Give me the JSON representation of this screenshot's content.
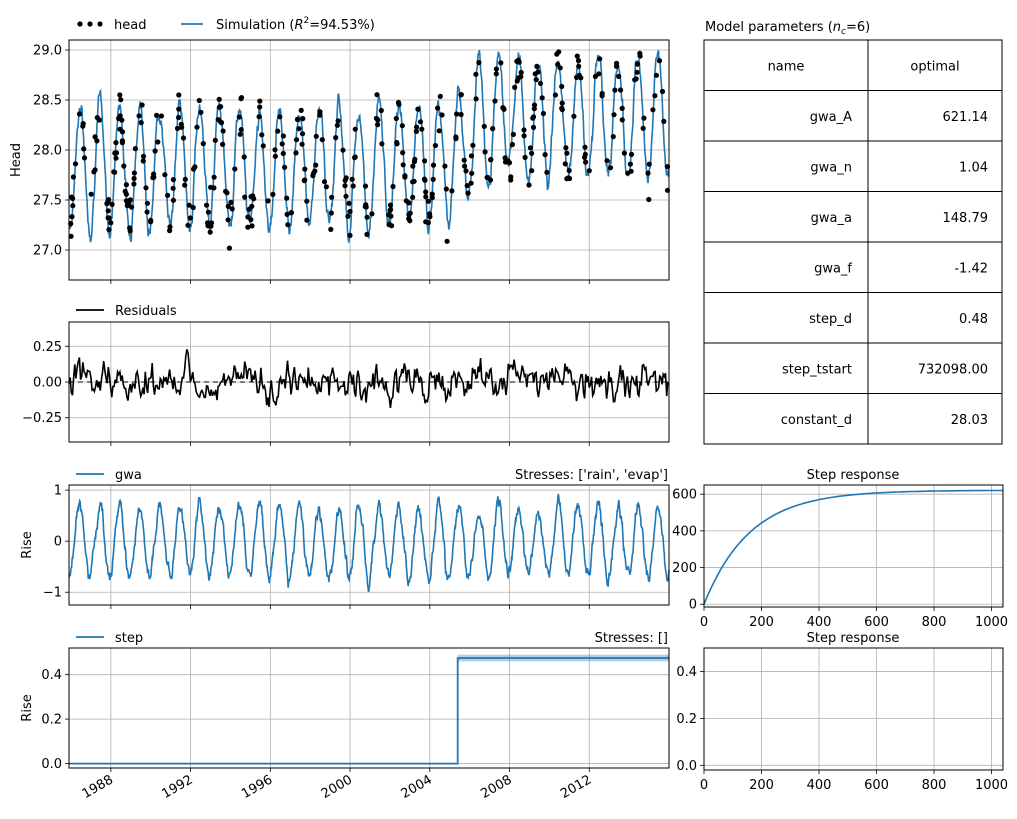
{
  "colors": {
    "blue": "#1f77b4",
    "black": "#000000",
    "grid": "#b0b0b0"
  },
  "chart_data": [
    {
      "id": "head",
      "type": "line",
      "ylabel": "Head",
      "ylim": [
        26.7,
        29.1
      ],
      "xlim": [
        1985.9,
        2016.0
      ],
      "yticks": [
        27.0,
        27.5,
        28.0,
        28.5,
        29.0
      ],
      "ytick_labels": [
        "27.0",
        "27.5",
        "28.0",
        "28.5",
        "29.0"
      ],
      "grid": true,
      "legend_position": "top-left above axes",
      "legend": [
        {
          "name": "head",
          "style": "dots",
          "color": "#000000"
        },
        {
          "name_prefix": "Simulation (",
          "name_r2": "R",
          "name_sup": "2",
          "name_suffix": "=94.53%)",
          "style": "line",
          "color": "#1f77b4"
        }
      ],
      "series": [
        {
          "name": "head",
          "style": "dots",
          "color": "#000000",
          "mean": 28.0,
          "amplitude": 0.55,
          "period": 1.0,
          "phase": 0.2,
          "noise": 0.25,
          "trend_after_2005": 0.45,
          "count": 420
        },
        {
          "name": "Simulation",
          "style": "line",
          "color": "#1f77b4",
          "mean": 28.0,
          "amplitude": 0.6,
          "period": 1.0,
          "phase": 0.2,
          "noise": 0.08,
          "trend_after_2005": 0.47,
          "count": 1200
        }
      ]
    },
    {
      "id": "residuals",
      "type": "line",
      "ylim": [
        -0.42,
        0.42
      ],
      "xlim": [
        1985.9,
        2016.0
      ],
      "yticks": [
        -0.25,
        0.0,
        0.25
      ],
      "ytick_labels": [
        "−0.25",
        "0.00",
        "0.25"
      ],
      "grid": true,
      "legend_position": "top-left above axes",
      "legend": [
        {
          "name": "Residuals",
          "style": "line",
          "color": "#000000"
        }
      ],
      "series": [
        {
          "name": "Residuals",
          "color": "#000000",
          "noise": 0.12,
          "count": 520
        }
      ],
      "zero_line": true
    },
    {
      "id": "gwa",
      "type": "line",
      "ylabel": "Rise",
      "ylim": [
        -1.25,
        1.1
      ],
      "xlim": [
        1985.9,
        2016.0
      ],
      "yticks": [
        -1,
        0,
        1
      ],
      "ytick_labels": [
        "−1",
        "0",
        "1"
      ],
      "grid": true,
      "title_right": "Stresses: ['rain', 'evap']",
      "legend_position": "top-left above axes",
      "legend": [
        {
          "name": "gwa",
          "style": "line",
          "color": "#1f77b4"
        }
      ],
      "series": [
        {
          "name": "gwa",
          "color": "#1f77b4",
          "mean": 0.0,
          "amplitude": 0.7,
          "period": 1.0,
          "phase": 0.2,
          "noise": 0.12,
          "count": 1400
        }
      ]
    },
    {
      "id": "step",
      "type": "line",
      "ylabel": "Rise",
      "ylim": [
        -0.02,
        0.52
      ],
      "xlim": [
        1985.9,
        2016.0
      ],
      "yticks": [
        0.0,
        0.2,
        0.4
      ],
      "ytick_labels": [
        "0.0",
        "0.2",
        "0.4"
      ],
      "grid": true,
      "title_right": "Stresses: []",
      "legend_position": "top-left above axes",
      "legend": [
        {
          "name": "step",
          "style": "line",
          "color": "#1f77b4"
        }
      ],
      "series": [
        {
          "name": "step",
          "color": "#1f77b4",
          "x": [
            1985.9,
            2005.4,
            2005.4,
            2016.0
          ],
          "y": [
            0.0,
            0.0,
            0.475,
            0.475
          ],
          "band": 0.015
        }
      ],
      "xticks": [
        1988,
        1992,
        1996,
        2000,
        2004,
        2008,
        2012
      ],
      "xtick_labels": [
        "1988",
        "1992",
        "1996",
        "2000",
        "2004",
        "2008",
        "2012"
      ]
    },
    {
      "id": "step_response_gwa",
      "type": "line",
      "title": "Step response",
      "xlim": [
        0,
        1040
      ],
      "ylim": [
        -15,
        650
      ],
      "xticks": [
        0,
        200,
        400,
        600,
        800,
        1000
      ],
      "xtick_labels": [
        "0",
        "200",
        "400",
        "600",
        "800",
        "1000"
      ],
      "yticks": [
        0,
        200,
        400,
        600
      ],
      "ytick_labels": [
        "0",
        "200",
        "400",
        "600"
      ],
      "grid": true,
      "series": [
        {
          "name": "gwa",
          "color": "#1f77b4",
          "A": 621.14,
          "tau": 160
        }
      ]
    },
    {
      "id": "step_response_step",
      "type": "line",
      "title": "Step response",
      "xlim": [
        0,
        1040
      ],
      "ylim": [
        -0.02,
        0.5
      ],
      "xticks": [
        0,
        200,
        400,
        600,
        800,
        1000
      ],
      "xtick_labels": [
        "0",
        "200",
        "400",
        "600",
        "800",
        "1000"
      ],
      "yticks": [
        0.0,
        0.2,
        0.4
      ],
      "ytick_labels": [
        "0.0",
        "0.2",
        "0.4"
      ],
      "grid": true,
      "series": []
    },
    {
      "id": "params",
      "type": "table",
      "title_prefix": "Model parameters (",
      "title_var": "n",
      "title_sub": "c",
      "title_suffix": "=6)",
      "columns": [
        "name",
        "optimal"
      ],
      "rows": [
        [
          "gwa_A",
          "621.14"
        ],
        [
          "gwa_n",
          "1.04"
        ],
        [
          "gwa_a",
          "148.79"
        ],
        [
          "gwa_f",
          "-1.42"
        ],
        [
          "step_d",
          "0.48"
        ],
        [
          "step_tstart",
          "732098.00"
        ],
        [
          "constant_d",
          "28.03"
        ]
      ]
    }
  ]
}
